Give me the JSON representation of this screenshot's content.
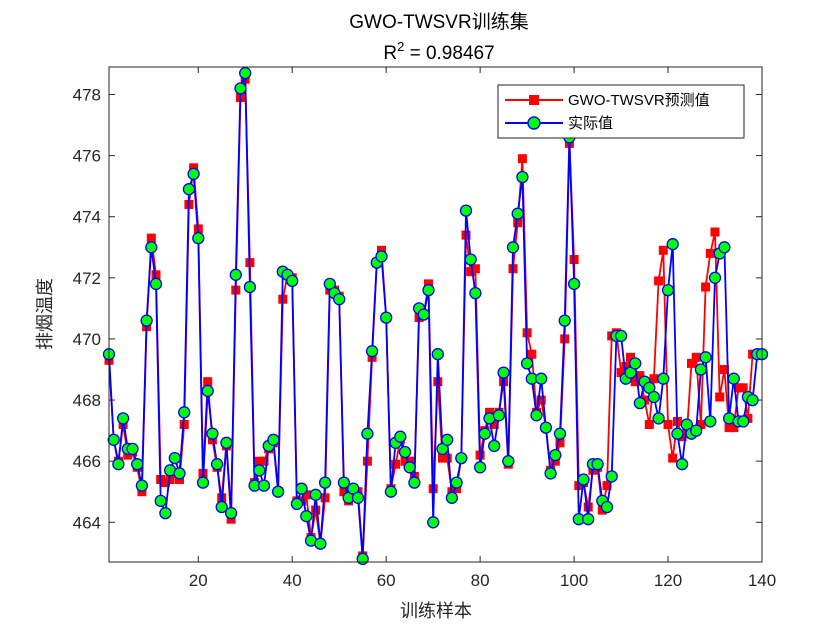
{
  "chart_data": {
    "type": "line",
    "title": "GWO-TWSVR训练集",
    "subtitle_prefix": "R",
    "subtitle_sup": "2",
    "subtitle_value": " = 0.98467",
    "xlabel": "训练样本",
    "ylabel": "排烟温度",
    "xlim": [
      1,
      140
    ],
    "ylim": [
      462.7,
      478.9
    ],
    "xticks": [
      20,
      40,
      60,
      80,
      100,
      120,
      140
    ],
    "yticks": [
      464,
      466,
      468,
      470,
      472,
      474,
      476,
      478
    ],
    "legend_position": "top-right",
    "colors": {
      "predicted": "#ff0000",
      "actual_line": "#0000ff",
      "actual_marker_fill": "#00ff00",
      "actual_marker_edge": "#0000ff"
    },
    "series": [
      {
        "name": "GWO-TWSVR预测值",
        "values": [
          469.3,
          466.7,
          466.0,
          467.2,
          466.2,
          466.3,
          465.8,
          465.0,
          470.4,
          473.3,
          472.1,
          465.4,
          465.3,
          465.4,
          465.6,
          465.4,
          467.2,
          474.4,
          475.6,
          473.6,
          465.6,
          468.6,
          466.7,
          465.8,
          464.8,
          466.5,
          464.1,
          471.6,
          477.9,
          478.5,
          472.5,
          465.3,
          466.0,
          466.0,
          466.4,
          466.6,
          465.0,
          471.3,
          472.1,
          472.0,
          464.7,
          464.7,
          464.9,
          463.5,
          464.4,
          463.3,
          464.8,
          471.6,
          471.6,
          471.4,
          465.0,
          464.7,
          464.9,
          465.0,
          462.9,
          466.0,
          469.4,
          472.5,
          472.9,
          470.7,
          465.1,
          465.9,
          466.7,
          466.0,
          466.0,
          465.5,
          470.7,
          470.8,
          471.8,
          465.1,
          468.6,
          466.1,
          466.1,
          465.0,
          465.1,
          466.1,
          473.4,
          472.2,
          472.3,
          466.2,
          467.0,
          467.6,
          467.2,
          467.6,
          468.6,
          465.9,
          472.3,
          473.8,
          475.9,
          470.2,
          469.5,
          467.6,
          468.0,
          467.1,
          465.7,
          466.0,
          466.6,
          470.0,
          476.4,
          472.6,
          465.2,
          465.3,
          464.5,
          465.7,
          465.8,
          464.4,
          465.2,
          470.1,
          470.2,
          468.9,
          469.1,
          469.4,
          468.6,
          468.8,
          468.0,
          467.2,
          468.7,
          471.9,
          472.9,
          467.2,
          466.1,
          467.3,
          466.8,
          466.9,
          469.2,
          469.4,
          467.2,
          471.7,
          472.8,
          473.5,
          468.1,
          469.0,
          467.1,
          467.1,
          468.4,
          468.4,
          467.4,
          469.5,
          469.5,
          469.5
        ],
        "marker": "square"
      },
      {
        "name": "实际值",
        "values": [
          469.5,
          466.7,
          465.9,
          467.4,
          466.4,
          466.4,
          465.9,
          465.2,
          470.6,
          473.0,
          471.8,
          464.7,
          464.3,
          465.7,
          466.1,
          465.6,
          467.6,
          474.9,
          475.4,
          473.3,
          465.3,
          468.3,
          466.9,
          465.9,
          464.5,
          466.6,
          464.3,
          472.1,
          478.2,
          478.7,
          471.7,
          465.2,
          465.7,
          465.2,
          466.5,
          466.7,
          465.0,
          472.2,
          472.1,
          471.9,
          464.6,
          465.1,
          464.2,
          463.4,
          464.9,
          463.3,
          465.3,
          471.8,
          471.5,
          471.3,
          465.3,
          464.8,
          465.1,
          464.8,
          462.8,
          466.9,
          469.6,
          472.5,
          472.7,
          470.7,
          465.0,
          466.6,
          466.8,
          466.3,
          465.8,
          465.3,
          471.0,
          470.8,
          471.6,
          464.0,
          469.5,
          466.4,
          466.7,
          464.8,
          465.3,
          466.1,
          474.2,
          472.6,
          471.5,
          465.8,
          466.9,
          467.4,
          466.5,
          467.5,
          468.9,
          466.0,
          473.0,
          474.1,
          475.3,
          469.2,
          468.7,
          467.5,
          468.7,
          467.1,
          465.6,
          466.2,
          466.9,
          470.6,
          476.6,
          471.8,
          464.1,
          465.4,
          464.1,
          465.9,
          465.9,
          464.7,
          464.5,
          465.5,
          470.1,
          470.1,
          468.7,
          468.9,
          469.2,
          467.9,
          468.6,
          468.4,
          468.1,
          467.4,
          468.7,
          471.6,
          473.1,
          466.9,
          465.9,
          467.2,
          466.9,
          467.0,
          469.0,
          469.4,
          467.3,
          472.0,
          472.8,
          473.0,
          467.4,
          468.7,
          467.3,
          467.3,
          468.1,
          468.0,
          469.5,
          469.5
        ],
        "marker": "circle"
      }
    ]
  }
}
